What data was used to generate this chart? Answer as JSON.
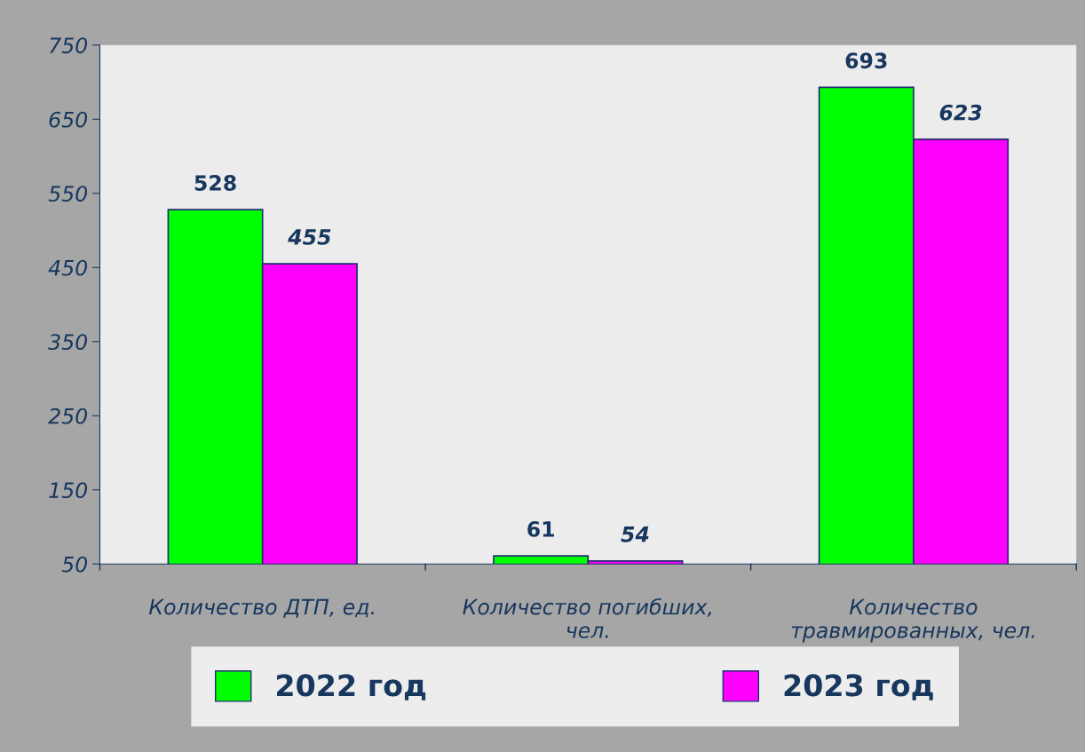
{
  "chart_data": {
    "type": "bar",
    "categories": [
      "Количество ДТП, ед.",
      "Количество погибших,\nчел.",
      "Количество\nтравмированных, чел."
    ],
    "series": [
      {
        "name": "2022 год",
        "color": "#00ff00",
        "values": [
          528,
          61,
          693
        ]
      },
      {
        "name": "2023 год",
        "color": "#ff00ff",
        "values": [
          455,
          54,
          623
        ]
      }
    ],
    "ylim": [
      50,
      750
    ],
    "yticks": [
      50,
      150,
      250,
      350,
      450,
      550,
      650,
      750
    ],
    "data_labels": true,
    "grid": false,
    "legend": "bottom"
  }
}
